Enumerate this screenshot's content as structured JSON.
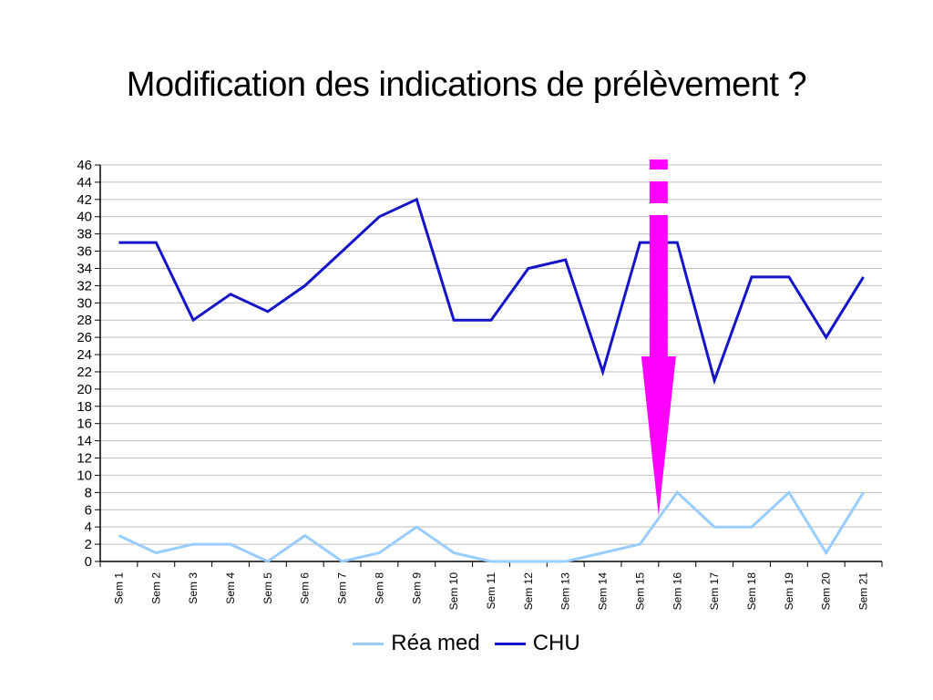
{
  "page": {
    "title": "Modification des indications de prélèvement ?"
  },
  "chart_data": {
    "type": "line",
    "title": "Modification des indications de prélèvement ?",
    "xlabel": "",
    "ylabel": "",
    "categories": [
      "Sem 1",
      "Sem 2",
      "Sem 3",
      "Sem 4",
      "Sem 5",
      "Sem 6",
      "Sem 7",
      "Sem 8",
      "Sem 9",
      "Sem 10",
      "Sem 11",
      "Sem 12",
      "Sem 13",
      "Sem 14",
      "Sem 15",
      "Sem 16",
      "Sem 17",
      "Sem 18",
      "Sem 19",
      "Sem 20",
      "Sem 21"
    ],
    "ylim": [
      0,
      46
    ],
    "ytick_step": 2,
    "grid": true,
    "legend_position": "bottom",
    "series": [
      {
        "name": "Réa med",
        "color": "#99CCFF",
        "values": [
          3,
          1,
          2,
          2,
          0,
          3,
          0,
          1,
          4,
          1,
          0,
          0,
          0,
          1,
          2,
          8,
          4,
          4,
          8,
          1,
          8
        ]
      },
      {
        "name": "CHU",
        "color": "#1414C8",
        "values": [
          37,
          37,
          28,
          31,
          29,
          32,
          36,
          40,
          42,
          28,
          28,
          34,
          35,
          22,
          37,
          37,
          21,
          33,
          33,
          26,
          33
        ]
      }
    ],
    "annotations": [
      {
        "type": "arrow",
        "style": "dashed-shaft-down",
        "color": "#FF00FF",
        "x_between": [
          "Sem 15",
          "Sem 16"
        ]
      }
    ]
  }
}
